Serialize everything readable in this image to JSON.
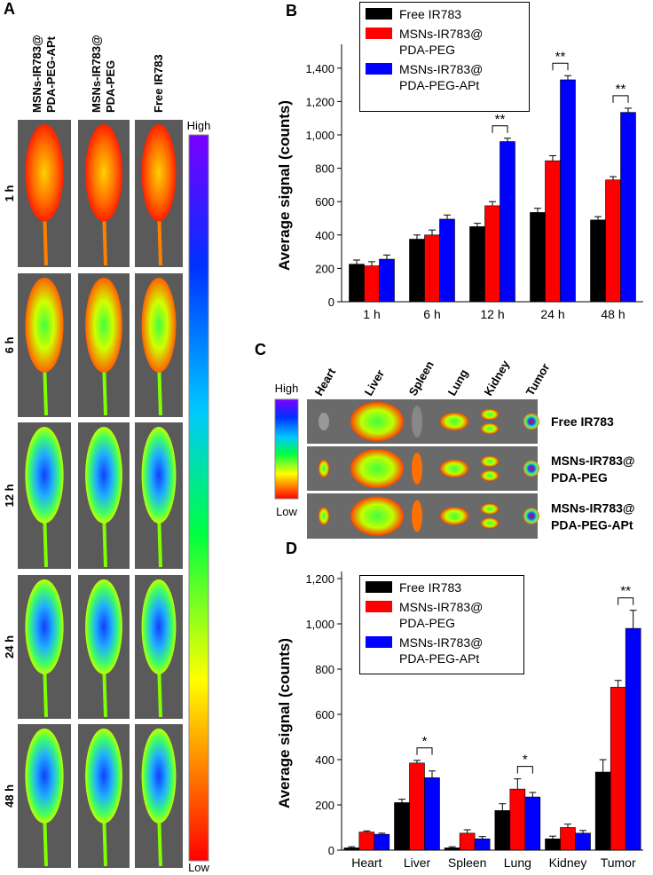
{
  "panel_a": {
    "label": "A",
    "columns": [
      [
        "MSNs-IR783@",
        "PDA-PEG-APt"
      ],
      [
        "MSNs-IR783@",
        "PDA-PEG"
      ],
      [
        "Free IR783"
      ]
    ],
    "rows": [
      "1 h",
      "6 h",
      "12 h",
      "24 h",
      "48 h"
    ],
    "scale_high": "High",
    "scale_low": "Low"
  },
  "panel_c": {
    "label": "C",
    "organs": [
      "Heart",
      "Liver",
      "Spleen",
      "Lung",
      "Kidney",
      "Tumor"
    ],
    "rows": [
      [
        "Free IR783"
      ],
      [
        "MSNs-IR783@",
        "PDA-PEG"
      ],
      [
        "MSNs-IR783@",
        "PDA-PEG-APt"
      ]
    ],
    "scale_high": "High",
    "scale_low": "Low"
  },
  "chart_data": [
    {
      "type": "bar",
      "panel_label": "B",
      "y_label": "Average signal (counts)",
      "categories": [
        "1 h",
        "6 h",
        "12 h",
        "24 h",
        "48 h"
      ],
      "series": [
        {
          "name": "Free IR783",
          "color": "#000000",
          "values": [
            225,
            375,
            450,
            535,
            490
          ],
          "errors": [
            25,
            25,
            20,
            25,
            20
          ]
        },
        {
          "name": "MSNs-IR783@ PDA-PEG",
          "color": "#ff0000",
          "values": [
            215,
            400,
            575,
            845,
            730
          ],
          "errors": [
            25,
            30,
            25,
            30,
            20
          ]
        },
        {
          "name": "MSNs-IR783@ PDA-PEG-APt",
          "color": "#0000ff",
          "values": [
            255,
            495,
            960,
            1330,
            1135
          ],
          "errors": [
            25,
            25,
            20,
            25,
            25
          ]
        }
      ],
      "ylim": [
        0,
        1500
      ],
      "yticks": [
        0,
        200,
        400,
        600,
        800,
        {
          "value": 1000,
          "label": "1,000"
        },
        {
          "value": 1200,
          "label": "1,200"
        },
        {
          "value": 1400,
          "label": "1,400"
        }
      ],
      "annotations": [
        {
          "text": "**",
          "category": "12 h"
        },
        {
          "text": "**",
          "category": "24 h"
        },
        {
          "text": "**",
          "category": "48 h"
        }
      ],
      "legend": "top-left"
    },
    {
      "type": "bar",
      "panel_label": "D",
      "y_label": "Average signal (counts)",
      "categories": [
        "Heart",
        "Liver",
        "Spleen",
        "Lung",
        "Kidney",
        "Tumor"
      ],
      "series": [
        {
          "name": "Free IR783",
          "color": "#000000",
          "values": [
            10,
            210,
            10,
            175,
            50,
            345
          ],
          "errors": [
            5,
            15,
            5,
            30,
            12,
            55
          ]
        },
        {
          "name": "MSNs-IR783@ PDA-PEG",
          "color": "#ff0000",
          "values": [
            80,
            385,
            75,
            270,
            100,
            720
          ],
          "errors": [
            5,
            12,
            15,
            45,
            15,
            30
          ]
        },
        {
          "name": "MSNs-IR783@ PDA-PEG-APt",
          "color": "#0000ff",
          "values": [
            70,
            320,
            50,
            235,
            75,
            980
          ],
          "errors": [
            5,
            30,
            10,
            20,
            12,
            80
          ]
        }
      ],
      "ylim": [
        0,
        1200
      ],
      "yticks": [
        0,
        200,
        400,
        600,
        800,
        {
          "value": 1000,
          "label": "1,000"
        },
        {
          "value": 1200,
          "label": "1,200"
        }
      ],
      "annotations": [
        {
          "text": "*",
          "category": "Liver"
        },
        {
          "text": "*",
          "category": "Lung"
        },
        {
          "text": "**",
          "category": "Tumor"
        }
      ],
      "legend": "top-left"
    }
  ]
}
